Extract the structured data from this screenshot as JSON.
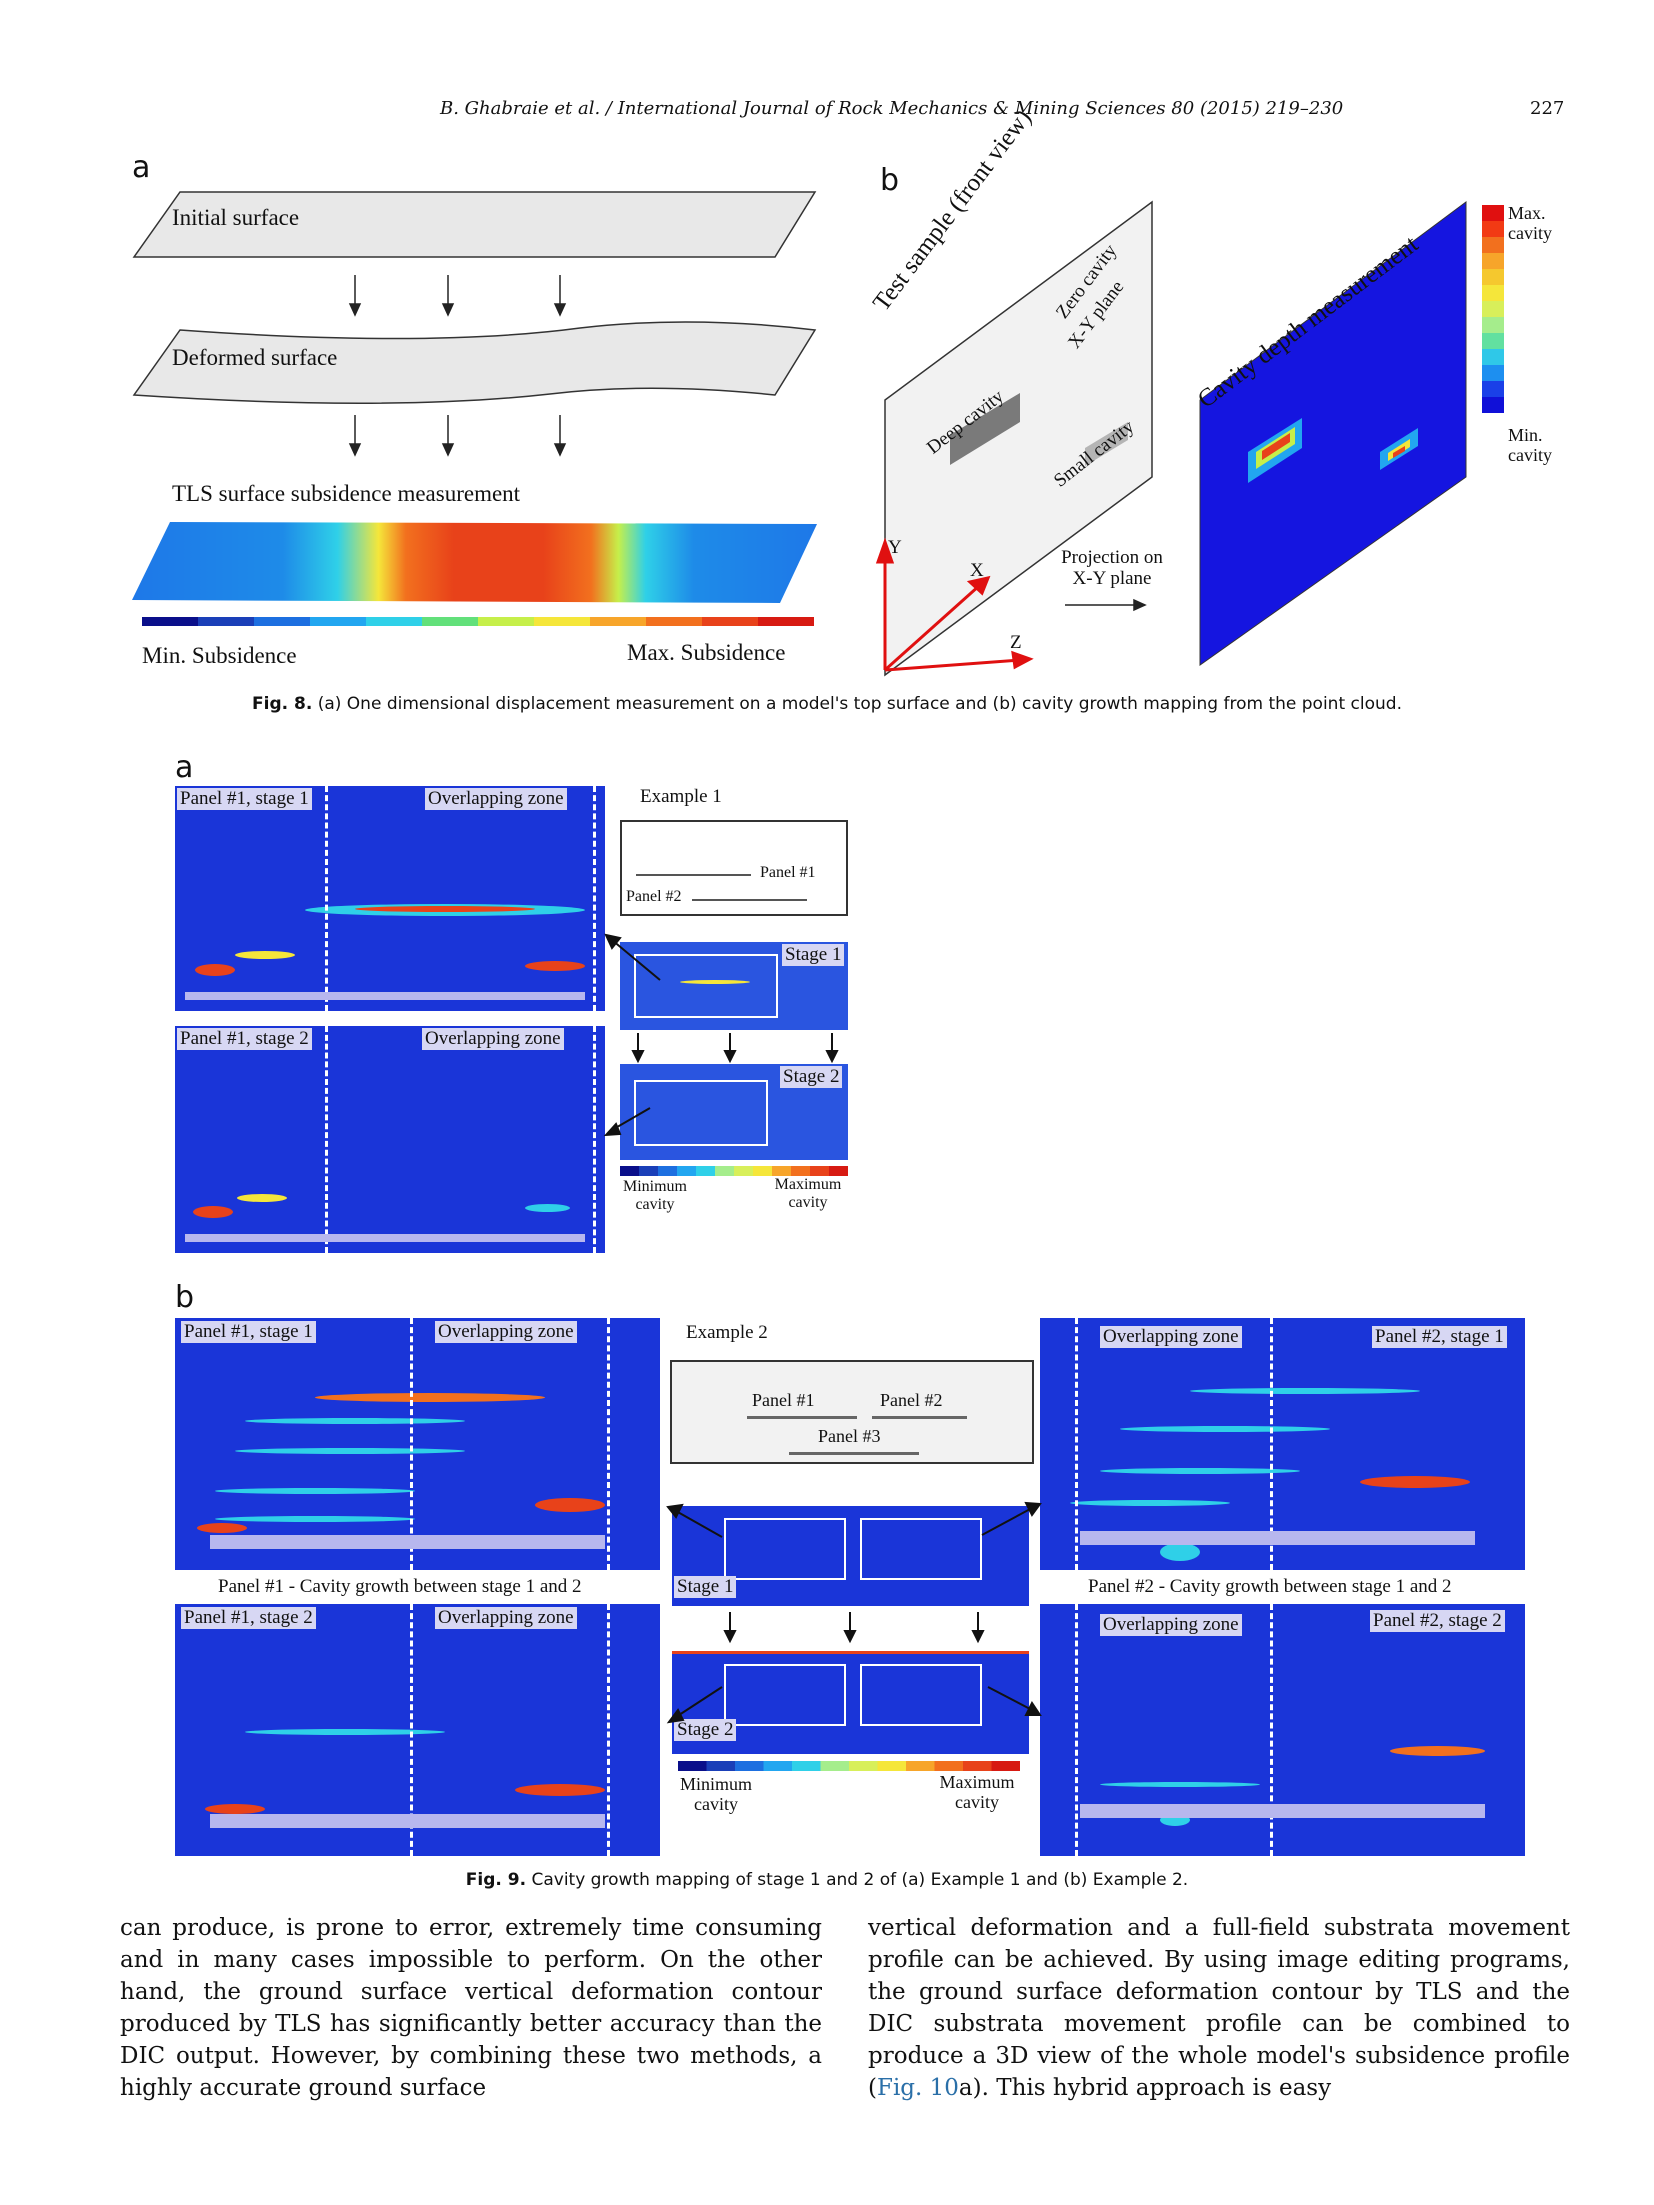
{
  "header": {
    "journal": "B. Ghabraie et al. / International Journal of Rock Mechanics & Mining Sciences 80 (2015) 219–230",
    "page_number": "227"
  },
  "fig8": {
    "panel_a_label": "a",
    "panel_b_label": "b",
    "initial_surface": "Initial surface",
    "deformed_surface": "Deformed surface",
    "tls_title": "TLS surface subsidence measurement",
    "min_subsidence": "Min. Subsidence",
    "max_subsidence": "Max. Subsidence",
    "test_sample": "Test sample (front view)",
    "zero_cavity": "Zero cavity",
    "xy_plane": "X-Y plane",
    "deep_cavity": "Deep cavity",
    "small_cavity": "Small cavity",
    "axis_x": "X",
    "axis_y": "Y",
    "axis_z": "Z",
    "projection_line1": "Projection on",
    "projection_line2": "X-Y plane",
    "cavity_depth": "Cavity depth measurement",
    "max_cavity_1": "Max.",
    "max_cavity_2": "cavity",
    "min_cavity_1": "Min.",
    "min_cavity_2": "cavity",
    "caption_label": "Fig. 8.",
    "caption_text": "(a) One dimensional displacement measurement on a model's top surface and (b) cavity growth mapping from the point cloud.",
    "colors": [
      "#0a0f8a",
      "#1a3fb8",
      "#1d6fe0",
      "#22a6f0",
      "#2fd0e8",
      "#62e07a",
      "#c6ef4a",
      "#f5e63a",
      "#f7a52a",
      "#f2701e",
      "#e8421a",
      "#d71a12"
    ]
  },
  "fig9": {
    "panel_a_label": "a",
    "panel_b_label": "b",
    "panel1_stage1": "Panel #1, stage 1",
    "panel1_stage2": "Panel #1, stage 2",
    "panel2_stage1": "Panel #2, stage 1",
    "panel2_stage2": "Panel #2, stage 2",
    "overlapping_zone": "Overlapping zone",
    "example1": "Example 1",
    "example2": "Example 2",
    "panel1": "Panel #1",
    "panel2": "Panel #2",
    "panel3": "Panel #3",
    "stage1": "Stage 1",
    "stage2": "Stage 2",
    "minimum_1": "Minimum",
    "minimum_2": "cavity",
    "maximum_1": "Maximum",
    "maximum_2": "cavity",
    "panel1_growth": "Panel #1 - Cavity growth between stage 1 and 2",
    "panel2_growth": "Panel #2 - Cavity growth between stage 1 and 2",
    "caption_label": "Fig. 9.",
    "caption_text": "Cavity growth mapping of stage 1 and 2 of (a) Example 1 and (b) Example 2."
  },
  "body": {
    "left_text": "can produce, is prone to error, extremely time consuming and in many cases impossible to perform. On the other hand, the ground surface vertical deformation contour produced by TLS has significantly better accuracy than the DIC output. However, by combining these two methods, a highly accurate ground surface",
    "right_text_1": "vertical deformation and a full-field substrata movement profile can be achieved. By using image editing programs, the ground surface deformation contour by TLS and the DIC substrata movement profile can be combined to produce a 3D view of the whole model's subsidence profile (",
    "right_link": "Fig. 10",
    "right_text_2": "a). This hybrid approach is easy"
  }
}
